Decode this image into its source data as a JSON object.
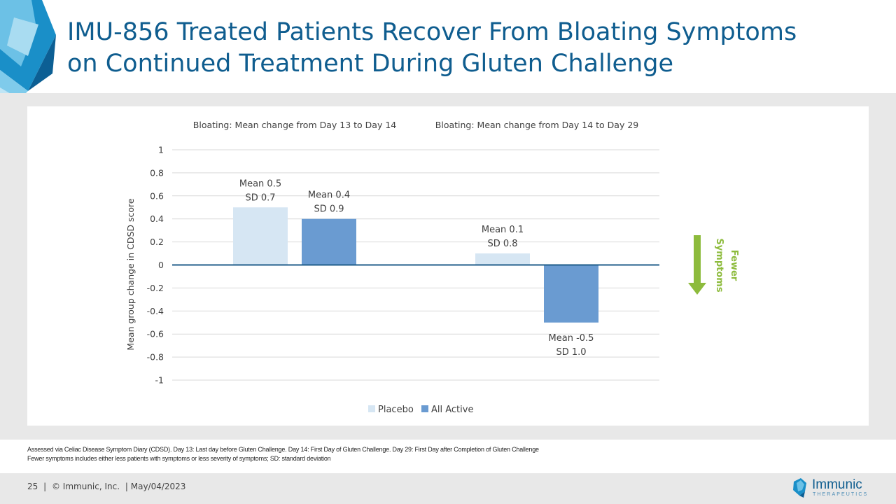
{
  "slide": {
    "title_line1": "IMU-856 Treated Patients Recover From Bloating Symptoms",
    "title_line2": "on Continued Treatment During Gluten Challenge"
  },
  "chart_data": {
    "type": "bar",
    "panels": [
      {
        "title": "Bloating: Mean change from Day 13 to Day 14",
        "series": [
          {
            "name": "Placebo",
            "value": 0.5,
            "label_line1": "Mean 0.5",
            "label_line2": "SD 0.7"
          },
          {
            "name": "All Active",
            "value": 0.4,
            "label_line1": "Mean 0.4",
            "label_line2": "SD 0.9"
          }
        ]
      },
      {
        "title": "Bloating: Mean change from Day 14 to Day 29",
        "series": [
          {
            "name": "Placebo",
            "value": 0.1,
            "label_line1": "Mean 0.1",
            "label_line2": "SD 0.8"
          },
          {
            "name": "All Active",
            "value": -0.5,
            "label_line1": "Mean -0.5",
            "label_line2": "SD 1.0"
          }
        ]
      }
    ],
    "ylabel": "Mean group change in CDSD score",
    "ylim": [
      -1,
      1
    ],
    "yticks": [
      1,
      0.8,
      0.6,
      0.4,
      0.2,
      0,
      -0.2,
      -0.4,
      -0.6,
      -0.8,
      -1
    ],
    "ytick_labels": [
      "1",
      "0.8",
      "0.6",
      "0.4",
      "0.2",
      "0",
      "-0.2",
      "-0.4",
      "-0.6",
      "-0.8",
      "-1"
    ],
    "legend": [
      {
        "name": "Placebo",
        "color": "#d6e6f3"
      },
      {
        "name": "All Active",
        "color": "#6a9bd1"
      }
    ],
    "legend_position": "bottom",
    "grid": true,
    "annotation": {
      "line1": "Fewer",
      "line2": "Symptoms",
      "color": "#8dbb3c"
    }
  },
  "colors": {
    "placebo": "#d6e6f3",
    "active": "#6a9bd1",
    "zero_line": "#1f5c8a",
    "grid": "#d9d9d9",
    "title": "#0f5d8f"
  },
  "footnotes": {
    "line1": "Assessed via Celiac Disease Symptom Diary (CDSD). Day 13: Last day before Gluten Challenge. Day 14: First Day of Gluten Challenge. Day 29: First Day after Completion of Gluten Challenge",
    "line2": "Fewer symptoms includes either less patients with symptoms or less severity of symptoms; SD: standard deviation"
  },
  "footer": {
    "page_number": "25",
    "separator": "|",
    "copyright": "© Immunic, Inc.",
    "date": "| May/04/2023"
  },
  "brand": {
    "name": "Immunic",
    "tagline": "THERAPEUTICS",
    "logo_icon": "immunic-logo-icon"
  }
}
